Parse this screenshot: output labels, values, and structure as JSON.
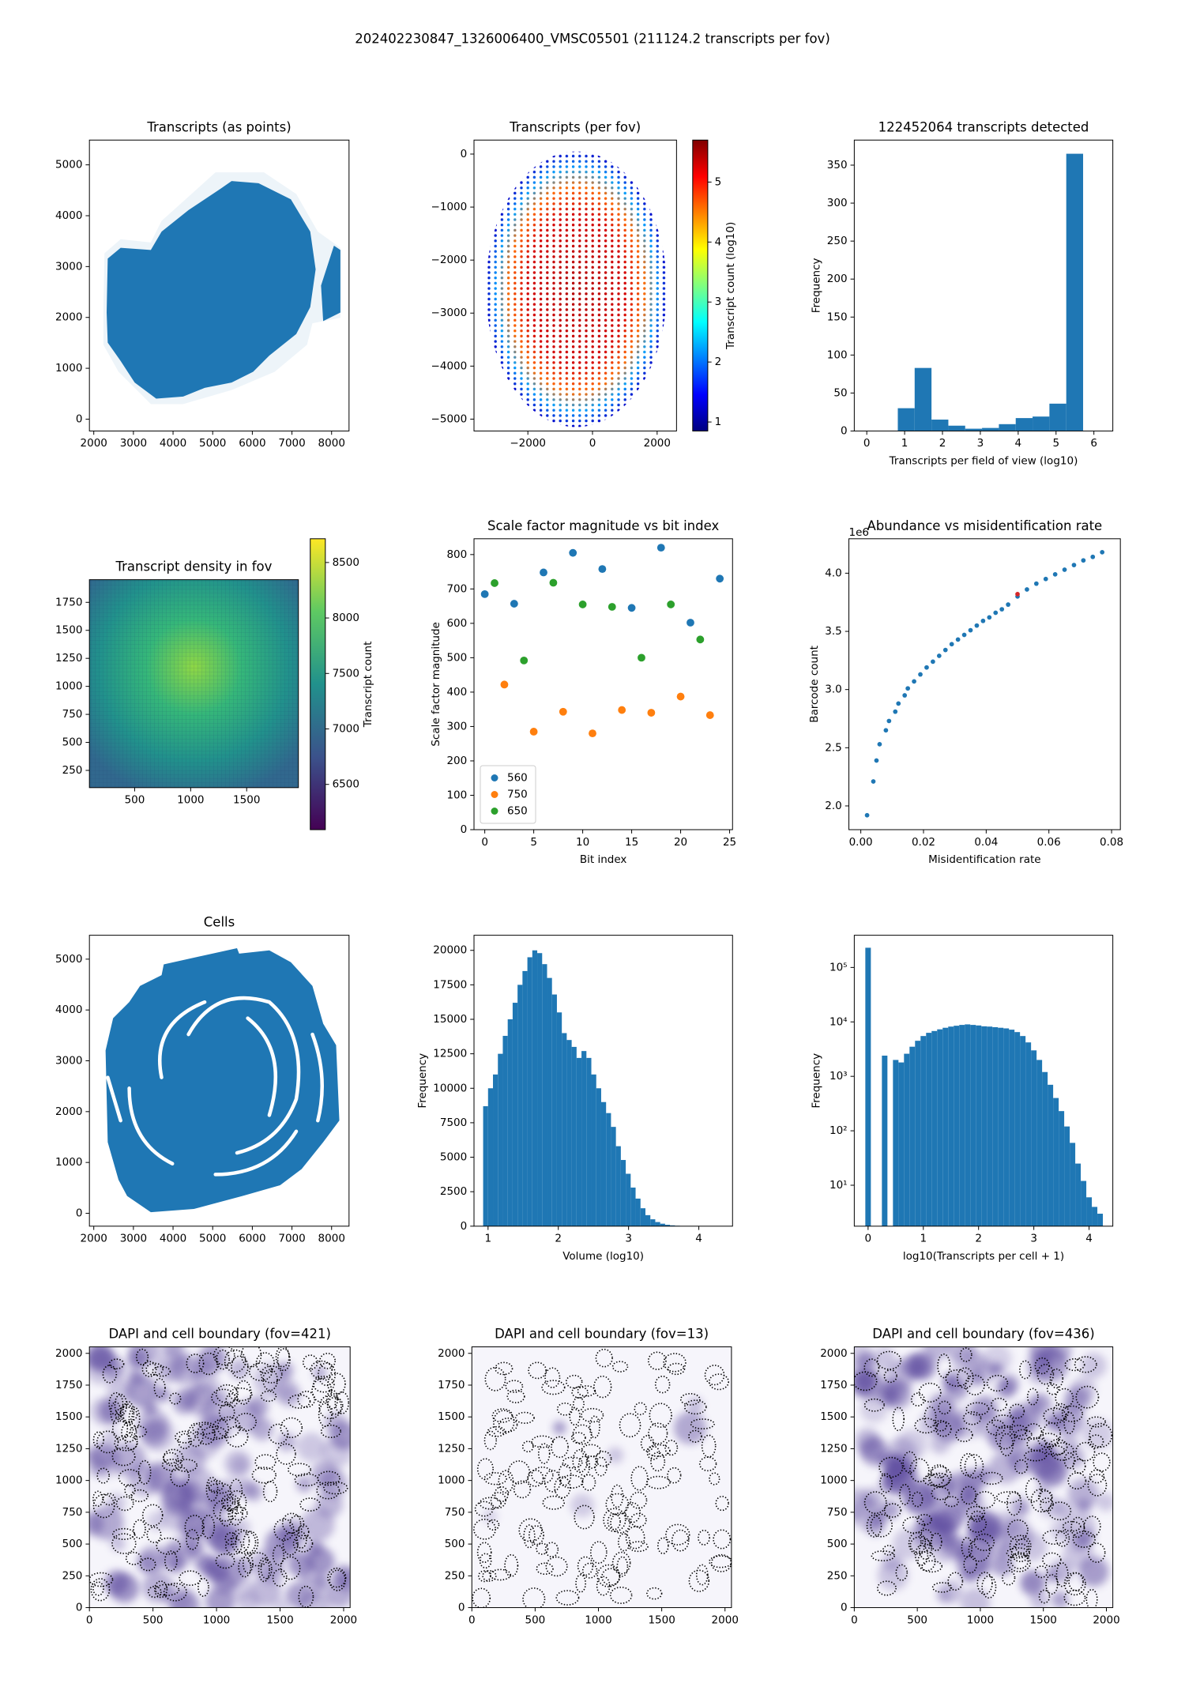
{
  "title": "202402230847_1326006400_VMSC05501 (211124.2 transcripts per fov)",
  "chart_data": [
    {
      "type": "image",
      "title": "Transcripts (as points)",
      "color": "#1f77b4",
      "xlim": [
        1890,
        8440
      ],
      "ylim": [
        -233,
        5487
      ],
      "xticks": [
        2000,
        3000,
        4000,
        5000,
        6000,
        7000,
        8000
      ],
      "yticks": [
        0,
        1000,
        2000,
        3000,
        4000,
        5000
      ]
    },
    {
      "type": "image",
      "title": "Transcripts (per fov)",
      "xlim": [
        -3667,
        2600
      ],
      "ylim": [
        -5224,
        264
      ],
      "xticks": [
        {
          "value": -2000,
          "label": "−2000"
        },
        0,
        2000
      ],
      "yticks": [
        0,
        {
          "value": -1000,
          "label": "−1000"
        },
        {
          "value": -2000,
          "label": "−2000"
        },
        {
          "value": -3000,
          "label": "−3000"
        },
        {
          "value": -4000,
          "label": "−4000"
        },
        {
          "value": -5000,
          "label": "−5000"
        }
      ],
      "colorbar": {
        "label": "Transcript count (log10)",
        "colormap": "jet",
        "lim": [
          0.85,
          5.7
        ],
        "ticks": [
          1,
          2,
          3,
          4,
          5
        ]
      }
    },
    {
      "type": "histogram",
      "title": "122452064 transcripts detected",
      "color": "#1f77b4",
      "xlabel": "Transcripts per field of view (log10)",
      "ylabel": "Frequency",
      "bins": [
        0.82,
        1.265,
        1.71,
        2.155,
        2.6,
        3.045,
        3.49,
        3.935,
        4.38,
        4.825,
        5.27,
        5.715
      ],
      "values": [
        30,
        83,
        15,
        7,
        3,
        4,
        9,
        17,
        19,
        36,
        365
      ],
      "xlim": [
        -0.33,
        6.5
      ],
      "ylim": [
        0,
        383
      ],
      "xticks": [
        0,
        1,
        2,
        3,
        4,
        5,
        6
      ],
      "yticks": [
        0,
        50,
        100,
        150,
        200,
        250,
        300,
        350
      ]
    },
    {
      "type": "heatmap",
      "title": "Transcript density in fov",
      "xlim": [
        96,
        1962
      ],
      "ylim": [
        96,
        1952
      ],
      "xticks": [
        500,
        1000,
        1500
      ],
      "yticks": [
        250,
        500,
        750,
        1000,
        1250,
        1500,
        1750
      ],
      "colorbar": {
        "label": "Transcript count",
        "colormap": "viridis",
        "lim": [
          6092,
          8714
        ],
        "ticks": [
          6500,
          7000,
          7500,
          8000,
          8500
        ]
      }
    },
    {
      "type": "scatter",
      "title": "Scale factor magnitude vs bit index",
      "xlabel": "Bit index",
      "ylabel": "Scale factor magnitude",
      "legend": "lower left",
      "xlim": [
        -1.1,
        25.3
      ],
      "ylim": [
        0,
        846
      ],
      "xticks": [
        0,
        5,
        10,
        15,
        20,
        25
      ],
      "yticks": [
        0,
        100,
        200,
        300,
        400,
        500,
        600,
        700,
        800
      ],
      "series": [
        {
          "name": "560",
          "color": "#1f77b4",
          "x": [
            0,
            3,
            6,
            9,
            12,
            15,
            18,
            21,
            24
          ],
          "values": [
            685,
            657,
            748,
            805,
            758,
            645,
            820,
            602,
            730
          ]
        },
        {
          "name": "750",
          "color": "#ff7f0e",
          "x": [
            2,
            5,
            8,
            11,
            14,
            17,
            20,
            23
          ],
          "values": [
            422,
            285,
            343,
            280,
            348,
            340,
            387,
            333
          ]
        },
        {
          "name": "650",
          "color": "#2ca02c",
          "x": [
            1,
            4,
            7,
            10,
            13,
            16,
            19,
            22
          ],
          "values": [
            717,
            492,
            718,
            655,
            648,
            500,
            655,
            553
          ]
        }
      ]
    },
    {
      "type": "scatter",
      "title": "Abundance vs misidentification rate",
      "xlabel": "Misidentification rate",
      "ylabel": "Barcode count",
      "y_offset_label": "1e6",
      "xlim": [
        -0.0038,
        0.0828
      ],
      "ylim": [
        1.796,
        4.296
      ],
      "xticks": [
        {
          "value": 0,
          "label": "0.00"
        },
        0.02,
        0.04,
        0.06,
        0.08
      ],
      "yticks": [
        {
          "value": 2,
          "label": "2.0"
        },
        2.5,
        {
          "value": 3,
          "label": "3.0"
        },
        3.5,
        {
          "value": 4,
          "label": "4.0"
        }
      ],
      "series": [
        {
          "color": "#1f77b4",
          "x": [
            0.002,
            0.004,
            0.005,
            0.006,
            0.008,
            0.009,
            0.011,
            0.012,
            0.014,
            0.015,
            0.017,
            0.019,
            0.021,
            0.023,
            0.025,
            0.027,
            0.029,
            0.031,
            0.033,
            0.035,
            0.037,
            0.039,
            0.041,
            0.043,
            0.045,
            0.047,
            0.05,
            0.053,
            0.056,
            0.059,
            0.062,
            0.065,
            0.068,
            0.071,
            0.074,
            0.077
          ],
          "values": [
            1.92,
            2.21,
            2.39,
            2.53,
            2.65,
            2.73,
            2.81,
            2.88,
            2.95,
            3.01,
            3.07,
            3.13,
            3.19,
            3.24,
            3.29,
            3.34,
            3.39,
            3.43,
            3.47,
            3.51,
            3.55,
            3.59,
            3.62,
            3.66,
            3.69,
            3.73,
            3.8,
            3.86,
            3.91,
            3.95,
            3.99,
            4.03,
            4.07,
            4.11,
            4.14,
            4.18
          ]
        },
        {
          "color": "#d62728",
          "x": [
            0.05
          ],
          "values": [
            3.82
          ]
        }
      ]
    },
    {
      "type": "image",
      "title": "Cells",
      "color": "#1f77b4",
      "xlim": [
        1890,
        8440
      ],
      "ylim": [
        -254,
        5470
      ],
      "xticks": [
        2000,
        3000,
        4000,
        5000,
        6000,
        7000,
        8000
      ],
      "yticks": [
        0,
        1000,
        2000,
        3000,
        4000,
        5000
      ]
    },
    {
      "type": "histogram",
      "color": "#1f77b4",
      "xlabel": "Volume (log10)",
      "ylabel": "Frequency",
      "bins": [
        0.93,
        1.0,
        1.07,
        1.14,
        1.21,
        1.28,
        1.35,
        1.42,
        1.49,
        1.56,
        1.63,
        1.7,
        1.77,
        1.84,
        1.91,
        1.98,
        2.05,
        2.12,
        2.19,
        2.26,
        2.33,
        2.4,
        2.47,
        2.54,
        2.61,
        2.68,
        2.75,
        2.82,
        2.89,
        2.96,
        3.03,
        3.1,
        3.17,
        3.24,
        3.31,
        3.38,
        3.45,
        3.52,
        3.59,
        3.66,
        3.73,
        3.8,
        3.87,
        3.94,
        4.01,
        4.08,
        4.15,
        4.22,
        4.29
      ],
      "values": [
        8700,
        10000,
        11000,
        12500,
        13800,
        15000,
        16200,
        17500,
        18500,
        19500,
        20000,
        19800,
        19000,
        18000,
        16800,
        15500,
        14000,
        13500,
        13000,
        12200,
        12700,
        12200,
        11000,
        10000,
        9000,
        8200,
        7200,
        5800,
        4800,
        3800,
        2800,
        2000,
        1300,
        800,
        500,
        300,
        180,
        100,
        60,
        30,
        15,
        8,
        4,
        2,
        1,
        1,
        0,
        1
      ],
      "xlim": [
        0.8,
        4.48
      ],
      "ylim": [
        0,
        21094
      ],
      "xticks": [
        1,
        2,
        3,
        4
      ],
      "yticks": [
        0,
        2500,
        5000,
        7500,
        10000,
        12500,
        15000,
        17500,
        20000
      ]
    },
    {
      "type": "histogram",
      "color": "#1f77b4",
      "xlabel": "log10(Transcripts per cell + 1)",
      "ylabel": "Frequency",
      "ylog": true,
      "bins": [
        -0.05,
        0.05,
        0.15,
        0.25,
        0.35,
        0.45,
        0.55,
        0.65,
        0.75,
        0.85,
        0.95,
        1.05,
        1.15,
        1.25,
        1.35,
        1.45,
        1.55,
        1.65,
        1.75,
        1.85,
        1.95,
        2.05,
        2.15,
        2.25,
        2.35,
        2.45,
        2.55,
        2.65,
        2.75,
        2.85,
        2.95,
        3.05,
        3.15,
        3.25,
        3.35,
        3.45,
        3.55,
        3.65,
        3.75,
        3.85,
        3.95,
        4.05,
        4.15,
        4.25
      ],
      "values": [
        230000,
        0,
        0,
        2400,
        0,
        2000,
        1800,
        2600,
        3500,
        4500,
        5500,
        6300,
        6800,
        7300,
        7800,
        8200,
        8500,
        8800,
        9000,
        8800,
        8600,
        8300,
        8200,
        8000,
        7800,
        7600,
        7200,
        6500,
        5500,
        4200,
        3000,
        2000,
        1200,
        700,
        400,
        230,
        120,
        60,
        25,
        12,
        6,
        4,
        3
      ],
      "xlim": [
        -0.25,
        4.43
      ],
      "ylim": [
        1.77,
        390000
      ],
      "xticks": [
        0,
        1,
        2,
        3,
        4
      ],
      "yticks": [
        {
          "value": 10,
          "label": "10¹"
        },
        {
          "value": 100,
          "label": "10²"
        },
        {
          "value": 1000,
          "label": "10³"
        },
        {
          "value": 10000,
          "label": "10⁴"
        },
        {
          "value": 100000,
          "label": "10⁵"
        }
      ]
    },
    {
      "type": "image",
      "title": "DAPI and cell boundary (fov=421)",
      "xlim": [
        0,
        2051
      ],
      "ylim": [
        0,
        2051
      ],
      "xticks": [
        0,
        500,
        1000,
        1500,
        2000
      ],
      "yticks": [
        0,
        250,
        500,
        750,
        1000,
        1250,
        1500,
        1750,
        2000
      ]
    },
    {
      "type": "image",
      "title": "DAPI and cell boundary (fov=13)",
      "xlim": [
        0,
        2051
      ],
      "ylim": [
        0,
        2051
      ],
      "xticks": [
        0,
        500,
        1000,
        1500,
        2000
      ],
      "yticks": [
        0,
        250,
        500,
        750,
        1000,
        1250,
        1500,
        1750,
        2000
      ]
    },
    {
      "type": "image",
      "title": "DAPI and cell boundary (fov=436)",
      "xlim": [
        0,
        2051
      ],
      "ylim": [
        0,
        2051
      ],
      "xticks": [
        0,
        500,
        1000,
        1500,
        2000
      ],
      "yticks": [
        0,
        250,
        500,
        750,
        1000,
        1250,
        1500,
        1750,
        2000
      ]
    }
  ]
}
